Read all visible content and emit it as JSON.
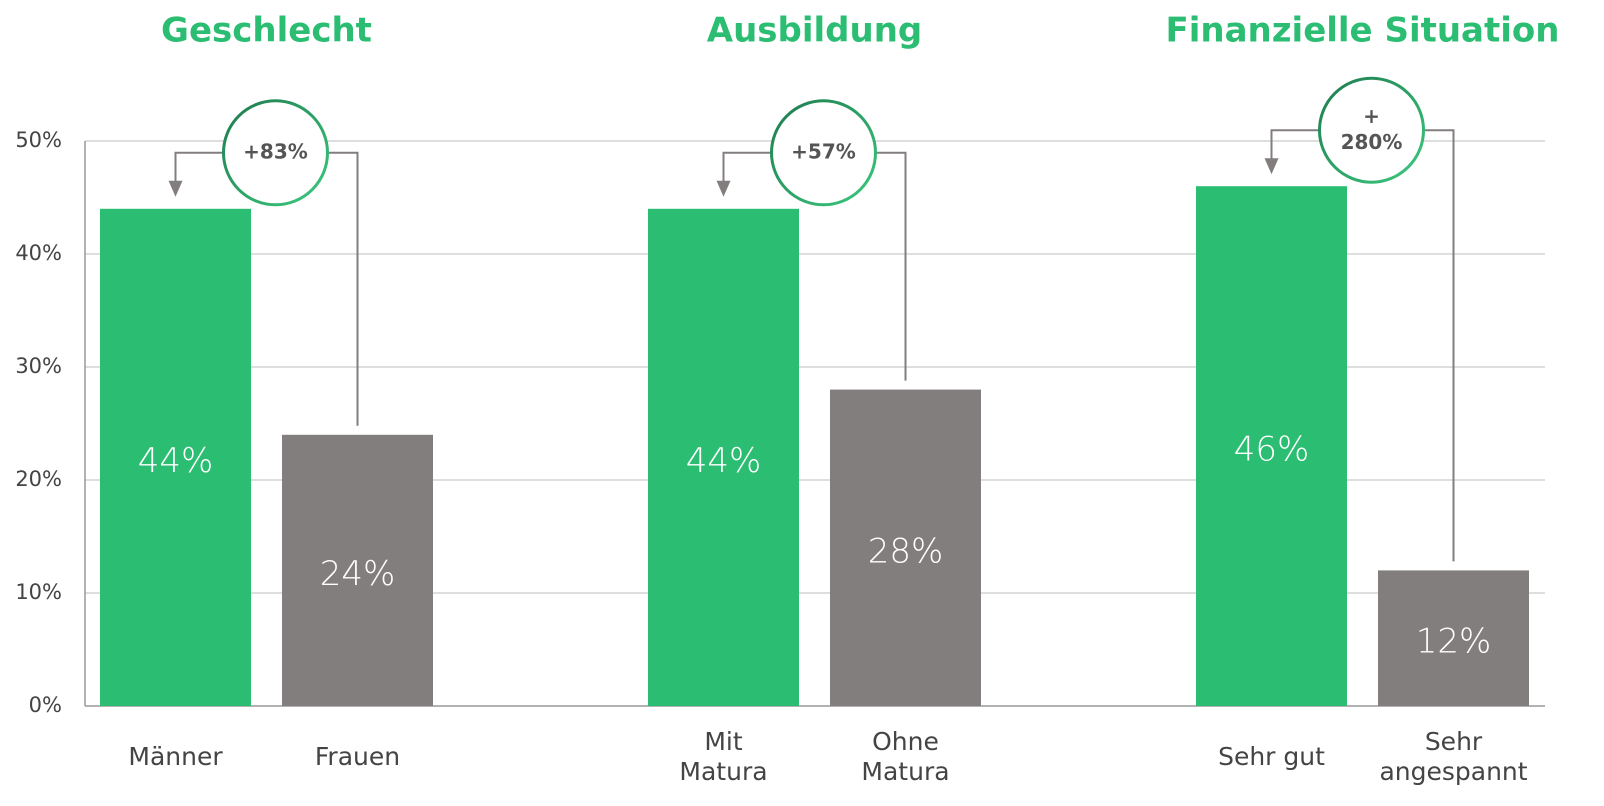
{
  "chart_data": {
    "type": "bar",
    "categories": [
      "Männer",
      "Frauen",
      "Mit Matura",
      "Ohne Matura",
      "Sehr gut",
      "Sehr angespannt"
    ],
    "values": [
      44,
      24,
      44,
      28,
      46,
      12
    ],
    "value_labels": [
      "44%",
      "24%",
      "44%",
      "28%",
      "46%",
      "12%"
    ],
    "colors": [
      "#2bbd72",
      "#827e7d",
      "#2bbd72",
      "#827e7d",
      "#2bbd72",
      "#827e7d"
    ],
    "groups": [
      {
        "title": "Geschlecht",
        "change": "+83%"
      },
      {
        "title": "Ausbildung",
        "change": "+57%"
      },
      {
        "title": "Finanzielle Situation",
        "change": "+280%"
      }
    ],
    "ylim": [
      0,
      50
    ],
    "yticks": [
      {
        "value": 0,
        "label": "0%"
      },
      {
        "value": 10,
        "label": "10%"
      },
      {
        "value": 20,
        "label": "20%"
      },
      {
        "value": 30,
        "label": "30%"
      },
      {
        "value": 40,
        "label": "40%"
      },
      {
        "value": 50,
        "label": "50%"
      }
    ],
    "grid": true
  }
}
